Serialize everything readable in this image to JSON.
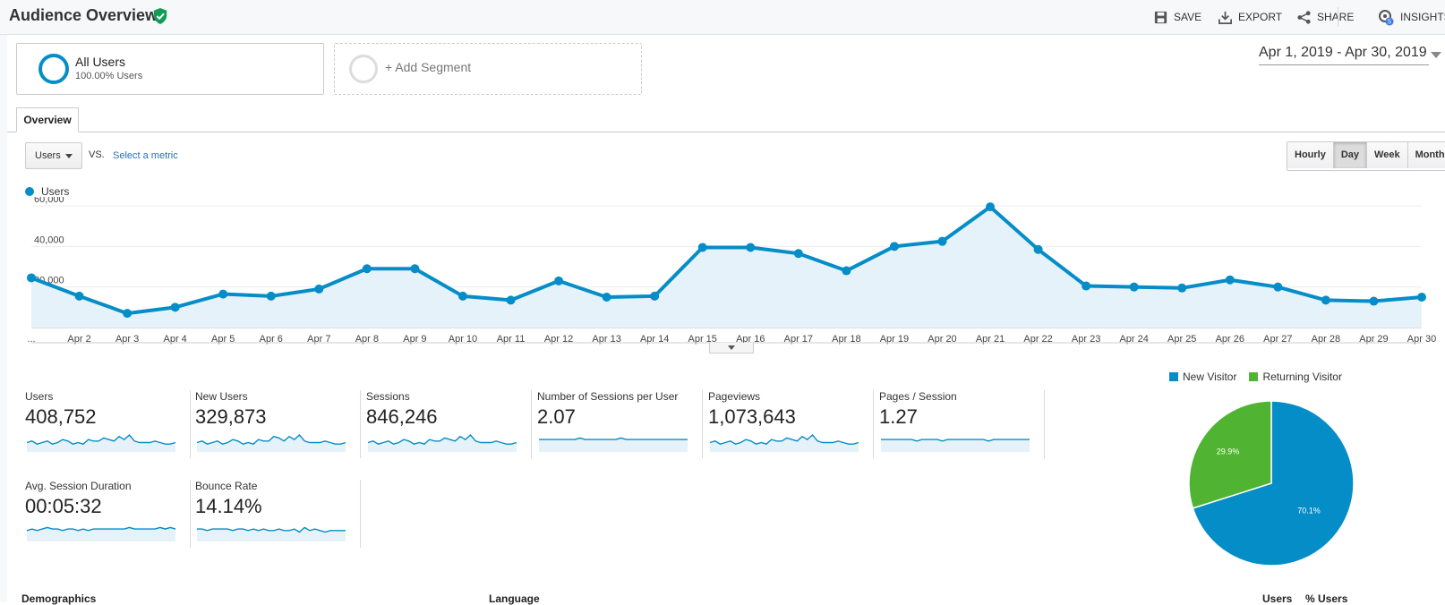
{
  "header": {
    "title": "Audience Overview",
    "actions": [
      {
        "label": "SAVE",
        "icon": "save-icon"
      },
      {
        "label": "EXPORT",
        "icon": "export-icon"
      },
      {
        "label": "SHARE",
        "icon": "share-icon"
      },
      {
        "label": "INSIGHTS",
        "icon": "insights-icon",
        "badge": "5"
      }
    ]
  },
  "segments": {
    "all_users_name": "All Users",
    "all_users_pct": "100.00% Users",
    "add_segment": "+ Add Segment"
  },
  "date_range": "Apr 1, 2019 - Apr 30, 2019",
  "tabs": {
    "overview": "Overview"
  },
  "metric": {
    "selected": "Users",
    "vs": "VS.",
    "select_metric": "Select a metric"
  },
  "granularity": {
    "options": [
      "Hourly",
      "Day",
      "Week",
      "Month"
    ],
    "active": "Day"
  },
  "colors": {
    "accent": "#058dc7",
    "new_visitor": "#058dc7",
    "returning_visitor": "#50b432",
    "area_fill": "#e6f2f9"
  },
  "chart_data": [
    {
      "type": "line",
      "series": [
        {
          "name": "Users",
          "values": [
            24500,
            15500,
            7000,
            10000,
            16500,
            15500,
            19000,
            29000,
            29000,
            15500,
            13500,
            23000,
            15000,
            15500,
            39500,
            39500,
            36500,
            28000,
            40000,
            42500,
            59500,
            38500,
            20500,
            20000,
            19500,
            23500,
            20000,
            13500,
            13000,
            15000
          ]
        }
      ],
      "x_tick_labels": [
        "...",
        "Apr 2",
        "Apr 3",
        "Apr 4",
        "Apr 5",
        "Apr 6",
        "Apr 7",
        "Apr 8",
        "Apr 9",
        "Apr 10",
        "Apr 11",
        "Apr 12",
        "Apr 13",
        "Apr 14",
        "Apr 15",
        "Apr 16",
        "Apr 17",
        "Apr 18",
        "Apr 19",
        "Apr 20",
        "Apr 21",
        "Apr 22",
        "Apr 23",
        "Apr 24",
        "Apr 25",
        "Apr 26",
        "Apr 27",
        "Apr 28",
        "Apr 29",
        "Apr 30"
      ],
      "y_tick_labels": [
        "20,000",
        "40,000",
        "60,000"
      ],
      "y_ticks": [
        20000,
        40000,
        60000
      ],
      "ylim": [
        0,
        60000
      ],
      "grid": true,
      "legend": "top-left"
    },
    {
      "type": "pie",
      "labels": [
        "New Visitor",
        "Returning Visitor"
      ],
      "values": [
        70.1,
        29.9
      ],
      "slice_labels": [
        "70.1%",
        "29.9%"
      ],
      "legend": "top"
    }
  ],
  "scorecards": [
    {
      "label": "Users",
      "value": "408,752",
      "spark": [
        5,
        6,
        4,
        5,
        6,
        4,
        5,
        7,
        6,
        4,
        5,
        4,
        7,
        6,
        6,
        8,
        7,
        6,
        9,
        7,
        10,
        6,
        5,
        5,
        5,
        6,
        5,
        4,
        4,
        5
      ]
    },
    {
      "label": "New Users",
      "value": "329,873",
      "spark": [
        5,
        6,
        4,
        5,
        6,
        4,
        5,
        7,
        6,
        4,
        5,
        4,
        7,
        6,
        6,
        9,
        8,
        6,
        9,
        7,
        10,
        6,
        5,
        5,
        5,
        6,
        5,
        4,
        4,
        5
      ]
    },
    {
      "label": "Sessions",
      "value": "846,246",
      "spark": [
        5,
        6,
        4,
        5,
        6,
        4,
        5,
        7,
        6,
        4,
        5,
        4,
        7,
        6,
        6,
        8,
        7,
        6,
        9,
        7,
        10,
        6,
        5,
        5,
        5,
        6,
        5,
        4,
        4,
        5
      ]
    },
    {
      "label": "Number of Sessions per User",
      "value": "2.07",
      "spark": [
        7,
        7,
        7,
        7,
        7,
        7,
        7,
        7,
        8,
        7,
        7,
        7,
        7,
        7,
        7,
        7,
        8,
        7,
        7,
        7,
        7,
        7,
        7,
        7,
        7,
        7,
        7,
        7,
        7,
        7
      ]
    },
    {
      "label": "Pageviews",
      "value": "1,073,643",
      "spark": [
        5,
        6,
        4,
        5,
        6,
        4,
        5,
        7,
        6,
        4,
        5,
        4,
        7,
        6,
        6,
        8,
        7,
        6,
        9,
        7,
        10,
        6,
        5,
        5,
        5,
        6,
        5,
        4,
        4,
        5
      ]
    },
    {
      "label": "Pages / Session",
      "value": "1.27",
      "spark": [
        7,
        7,
        7,
        7,
        7,
        7,
        7,
        6,
        7,
        7,
        7,
        7,
        6,
        7,
        7,
        7,
        7,
        7,
        7,
        7,
        7,
        6,
        7,
        7,
        7,
        7,
        7,
        7,
        7,
        7
      ]
    },
    {
      "label": "Avg. Session Duration",
      "value": "00:05:32",
      "spark": [
        6,
        7,
        6,
        7,
        8,
        7,
        7,
        6,
        7,
        7,
        6,
        7,
        6,
        7,
        7,
        7,
        7,
        7,
        7,
        7,
        8,
        7,
        7,
        7,
        7,
        7,
        8,
        7,
        8,
        7
      ]
    },
    {
      "label": "Bounce Rate",
      "value": "14.14%",
      "spark": [
        7,
        7,
        6,
        7,
        7,
        7,
        7,
        6,
        7,
        7,
        6,
        7,
        6,
        7,
        6,
        6,
        7,
        6,
        6,
        7,
        5,
        8,
        6,
        7,
        6,
        5,
        6,
        6,
        6,
        6
      ]
    }
  ],
  "bottom": {
    "demographics": "Demographics",
    "language": "Language",
    "users_col": "Users",
    "pct_users_col": "% Users"
  }
}
